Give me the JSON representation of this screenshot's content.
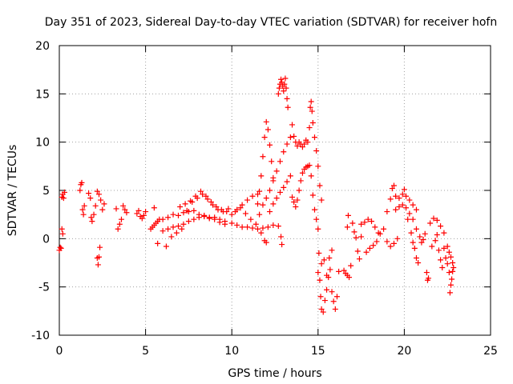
{
  "chart_data": {
    "type": "scatter",
    "title": "Day 351 of 2023, Sidereal Day-to-day VTEC variation (SDTVAR) for receiver hofn",
    "xlabel": "GPS time / hours",
    "ylabel": "SDTVAR / TECUs",
    "xlim": [
      0,
      25
    ],
    "ylim": [
      -10,
      20
    ],
    "x_ticks": [
      0,
      5,
      10,
      15,
      20,
      25
    ],
    "y_ticks": [
      -10,
      -5,
      0,
      5,
      10,
      15,
      20
    ],
    "x_tick_labels": [
      "0",
      "5",
      "10",
      "15",
      "20",
      "25"
    ],
    "y_tick_labels": [
      "-10",
      "-5",
      "0",
      "5",
      "10",
      "15",
      "20"
    ],
    "grid": true,
    "marker": "+",
    "series": [
      {
        "name": "SDTVAR",
        "color": "#ff0000",
        "points": [
          [
            0.0,
            -1.2
          ],
          [
            0.05,
            -0.9
          ],
          [
            0.1,
            -1.0
          ],
          [
            0.15,
            4.3
          ],
          [
            0.2,
            4.6
          ],
          [
            0.25,
            4.2
          ],
          [
            0.3,
            4.8
          ],
          [
            0.2,
            0.5
          ],
          [
            0.15,
            1.0
          ],
          [
            1.2,
            5.0
          ],
          [
            1.25,
            5.6
          ],
          [
            1.3,
            5.8
          ],
          [
            1.35,
            3.0
          ],
          [
            1.4,
            2.5
          ],
          [
            1.45,
            3.4
          ],
          [
            1.7,
            4.7
          ],
          [
            1.8,
            4.2
          ],
          [
            1.85,
            2.2
          ],
          [
            1.9,
            1.8
          ],
          [
            2.0,
            2.5
          ],
          [
            2.1,
            3.4
          ],
          [
            2.2,
            4.9
          ],
          [
            2.3,
            4.6
          ],
          [
            2.4,
            4.0
          ],
          [
            2.2,
            -2.0
          ],
          [
            2.25,
            -2.7
          ],
          [
            2.3,
            -1.9
          ],
          [
            2.35,
            -0.9
          ],
          [
            2.5,
            3.0
          ],
          [
            2.6,
            3.6
          ],
          [
            3.3,
            3.1
          ],
          [
            3.4,
            1.0
          ],
          [
            3.5,
            1.5
          ],
          [
            3.6,
            2.0
          ],
          [
            3.7,
            3.4
          ],
          [
            3.8,
            3.0
          ],
          [
            3.9,
            2.7
          ],
          [
            4.5,
            2.6
          ],
          [
            4.6,
            2.9
          ],
          [
            4.7,
            2.3
          ],
          [
            4.8,
            2.1
          ],
          [
            4.9,
            2.4
          ],
          [
            5.0,
            2.8
          ],
          [
            5.3,
            1.0
          ],
          [
            5.4,
            1.2
          ],
          [
            5.5,
            1.4
          ],
          [
            5.6,
            1.6
          ],
          [
            5.7,
            1.8
          ],
          [
            5.8,
            2.0
          ],
          [
            5.5,
            3.2
          ],
          [
            5.7,
            -0.5
          ],
          [
            6.0,
            2.0
          ],
          [
            6.3,
            2.2
          ],
          [
            6.6,
            2.5
          ],
          [
            6.9,
            2.4
          ],
          [
            7.2,
            2.7
          ],
          [
            7.5,
            2.8
          ],
          [
            7.8,
            2.9
          ],
          [
            8.1,
            2.5
          ],
          [
            8.4,
            2.3
          ],
          [
            8.7,
            2.1
          ],
          [
            9.0,
            2.2
          ],
          [
            9.3,
            2.0
          ],
          [
            9.6,
            1.8
          ],
          [
            6.0,
            0.8
          ],
          [
            6.3,
            1.0
          ],
          [
            6.6,
            1.2
          ],
          [
            6.9,
            1.3
          ],
          [
            7.2,
            1.5
          ],
          [
            7.5,
            1.8
          ],
          [
            7.8,
            2.0
          ],
          [
            8.1,
            2.2
          ],
          [
            8.4,
            2.4
          ],
          [
            8.7,
            2.2
          ],
          [
            9.0,
            2.0
          ],
          [
            9.3,
            1.7
          ],
          [
            9.6,
            1.5
          ],
          [
            6.2,
            -0.8
          ],
          [
            6.5,
            0.2
          ],
          [
            6.8,
            0.6
          ],
          [
            7.1,
            1.0
          ],
          [
            7.4,
            2.9
          ],
          [
            7.7,
            3.8
          ],
          [
            8.0,
            4.2
          ],
          [
            8.3,
            4.6
          ],
          [
            8.6,
            4.1
          ],
          [
            8.9,
            3.5
          ],
          [
            9.2,
            3.0
          ],
          [
            9.5,
            2.8
          ],
          [
            9.8,
            3.1
          ],
          [
            7.0,
            3.3
          ],
          [
            7.3,
            3.6
          ],
          [
            7.6,
            3.9
          ],
          [
            7.9,
            4.4
          ],
          [
            8.2,
            4.9
          ],
          [
            8.5,
            4.4
          ],
          [
            8.8,
            3.8
          ],
          [
            9.1,
            3.3
          ],
          [
            9.4,
            3.0
          ],
          [
            9.7,
            2.8
          ],
          [
            10.0,
            2.5
          ],
          [
            10.3,
            3.0
          ],
          [
            10.6,
            3.5
          ],
          [
            10.9,
            4.0
          ],
          [
            11.2,
            4.4
          ],
          [
            11.5,
            4.6
          ],
          [
            10.0,
            1.6
          ],
          [
            10.3,
            1.4
          ],
          [
            10.6,
            1.2
          ],
          [
            10.9,
            1.2
          ],
          [
            11.2,
            1.1
          ],
          [
            11.5,
            1.0
          ],
          [
            11.8,
            1.1
          ],
          [
            12.1,
            1.2
          ],
          [
            12.4,
            1.4
          ],
          [
            12.7,
            1.3
          ],
          [
            12.85,
            0.2
          ],
          [
            12.9,
            -0.6
          ],
          [
            10.2,
            2.8
          ],
          [
            10.5,
            3.2
          ],
          [
            10.8,
            2.6
          ],
          [
            11.1,
            2.0
          ],
          [
            11.4,
            1.5
          ],
          [
            11.7,
            0.6
          ],
          [
            11.9,
            -0.2
          ],
          [
            12.0,
            -0.4
          ],
          [
            11.5,
            3.6
          ],
          [
            11.6,
            4.9
          ],
          [
            11.7,
            6.5
          ],
          [
            11.8,
            8.5
          ],
          [
            11.9,
            10.5
          ],
          [
            12.0,
            12.1
          ],
          [
            12.1,
            11.3
          ],
          [
            12.2,
            9.7
          ],
          [
            12.3,
            8.0
          ],
          [
            12.4,
            6.3
          ],
          [
            11.6,
            2.5
          ],
          [
            11.8,
            3.5
          ],
          [
            12.0,
            4.2
          ],
          [
            12.2,
            5.0
          ],
          [
            12.4,
            6.0
          ],
          [
            12.6,
            7.0
          ],
          [
            12.8,
            8.0
          ],
          [
            13.0,
            9.0
          ],
          [
            13.2,
            9.8
          ],
          [
            12.2,
            2.8
          ],
          [
            12.4,
            3.6
          ],
          [
            12.6,
            4.2
          ],
          [
            12.8,
            4.8
          ],
          [
            13.0,
            5.3
          ],
          [
            13.2,
            5.9
          ],
          [
            13.4,
            6.5
          ],
          [
            12.7,
            15.0
          ],
          [
            12.75,
            15.6
          ],
          [
            12.8,
            16.0
          ],
          [
            12.85,
            16.5
          ],
          [
            12.9,
            16.2
          ],
          [
            12.95,
            15.8
          ],
          [
            13.0,
            15.3
          ],
          [
            13.05,
            16.0
          ],
          [
            13.1,
            16.6
          ],
          [
            13.15,
            15.6
          ],
          [
            13.2,
            14.5
          ],
          [
            13.25,
            13.6
          ],
          [
            13.4,
            10.5
          ],
          [
            13.5,
            11.8
          ],
          [
            13.6,
            10.6
          ],
          [
            13.7,
            10.0
          ],
          [
            13.8,
            9.6
          ],
          [
            13.9,
            10.0
          ],
          [
            14.0,
            9.8
          ],
          [
            14.1,
            9.5
          ],
          [
            14.2,
            9.8
          ],
          [
            14.3,
            10.2
          ],
          [
            14.4,
            10.0
          ],
          [
            14.5,
            11.5
          ],
          [
            14.55,
            13.6
          ],
          [
            14.6,
            14.2
          ],
          [
            14.65,
            13.2
          ],
          [
            14.7,
            12.0
          ],
          [
            14.8,
            10.5
          ],
          [
            14.9,
            9.1
          ],
          [
            15.0,
            7.5
          ],
          [
            15.1,
            5.5
          ],
          [
            15.2,
            4.0
          ],
          [
            13.5,
            4.3
          ],
          [
            13.6,
            3.8
          ],
          [
            13.7,
            3.3
          ],
          [
            13.8,
            4.0
          ],
          [
            13.9,
            5.0
          ],
          [
            14.0,
            6.0
          ],
          [
            14.1,
            6.8
          ],
          [
            14.2,
            7.2
          ],
          [
            14.3,
            7.4
          ],
          [
            14.4,
            7.5
          ],
          [
            14.5,
            7.6
          ],
          [
            14.6,
            6.5
          ],
          [
            14.7,
            4.5
          ],
          [
            14.8,
            3.0
          ],
          [
            14.9,
            2.0
          ],
          [
            15.0,
            1.0
          ],
          [
            15.0,
            -3.5
          ],
          [
            15.1,
            -4.3
          ],
          [
            15.15,
            -6.0
          ],
          [
            15.2,
            -7.3
          ],
          [
            15.3,
            -7.6
          ],
          [
            15.4,
            -6.4
          ],
          [
            15.5,
            -5.3
          ],
          [
            15.6,
            -4.0
          ],
          [
            15.7,
            -3.2
          ],
          [
            15.8,
            -5.5
          ],
          [
            15.9,
            -6.5
          ],
          [
            16.0,
            -7.3
          ],
          [
            16.1,
            -6.0
          ],
          [
            16.2,
            -3.4
          ],
          [
            15.05,
            -1.5
          ],
          [
            15.2,
            -2.6
          ],
          [
            15.35,
            -2.2
          ],
          [
            15.5,
            -3.8
          ],
          [
            15.65,
            -2.0
          ],
          [
            15.8,
            -1.2
          ],
          [
            16.5,
            -3.3
          ],
          [
            16.6,
            -3.6
          ],
          [
            16.7,
            -3.8
          ],
          [
            16.8,
            -4.0
          ],
          [
            16.9,
            -2.8
          ],
          [
            16.7,
            1.2
          ],
          [
            16.75,
            2.4
          ],
          [
            17.0,
            1.6
          ],
          [
            17.1,
            0.7
          ],
          [
            17.2,
            0.1
          ],
          [
            17.3,
            -1.3
          ],
          [
            17.4,
            -2.1
          ],
          [
            17.5,
            0.2
          ],
          [
            17.5,
            1.5
          ],
          [
            17.7,
            1.7
          ],
          [
            17.9,
            2.0
          ],
          [
            18.1,
            1.8
          ],
          [
            18.3,
            1.2
          ],
          [
            18.5,
            0.6
          ],
          [
            17.8,
            -1.4
          ],
          [
            18.0,
            -1.0
          ],
          [
            18.2,
            -0.7
          ],
          [
            18.4,
            -0.3
          ],
          [
            18.6,
            0.5
          ],
          [
            18.8,
            1.0
          ],
          [
            19.0,
            -0.3
          ],
          [
            19.2,
            -0.8
          ],
          [
            19.4,
            -0.5
          ],
          [
            19.6,
            0.0
          ],
          [
            19.0,
            2.8
          ],
          [
            19.2,
            4.1
          ],
          [
            19.3,
            5.2
          ],
          [
            19.4,
            5.5
          ],
          [
            19.5,
            4.4
          ],
          [
            19.7,
            4.2
          ],
          [
            19.9,
            4.6
          ],
          [
            20.0,
            5.1
          ],
          [
            20.1,
            4.4
          ],
          [
            20.3,
            4.0
          ],
          [
            20.5,
            3.5
          ],
          [
            20.7,
            3.0
          ],
          [
            19.5,
            3.0
          ],
          [
            19.7,
            3.3
          ],
          [
            19.9,
            3.5
          ],
          [
            20.1,
            3.2
          ],
          [
            20.3,
            2.6
          ],
          [
            20.5,
            2.0
          ],
          [
            20.7,
            1.0
          ],
          [
            20.9,
            0.2
          ],
          [
            20.2,
            2.0
          ],
          [
            20.4,
            0.6
          ],
          [
            20.5,
            -0.4
          ],
          [
            20.6,
            -1.0
          ],
          [
            20.7,
            -2.0
          ],
          [
            20.8,
            -2.5
          ],
          [
            21.0,
            -0.4
          ],
          [
            21.1,
            -0.1
          ],
          [
            21.2,
            0.5
          ],
          [
            21.3,
            -3.5
          ],
          [
            21.35,
            -4.3
          ],
          [
            21.4,
            -4.1
          ],
          [
            21.5,
            1.6
          ],
          [
            21.7,
            2.1
          ],
          [
            21.9,
            1.9
          ],
          [
            22.1,
            1.3
          ],
          [
            22.3,
            0.6
          ],
          [
            21.6,
            -0.8
          ],
          [
            21.8,
            -0.2
          ],
          [
            21.9,
            0.4
          ],
          [
            22.0,
            -1.2
          ],
          [
            22.1,
            -2.2
          ],
          [
            22.2,
            -3.0
          ],
          [
            22.3,
            -1.0
          ],
          [
            22.4,
            -2.0
          ],
          [
            22.5,
            -2.6
          ],
          [
            22.6,
            -3.5
          ],
          [
            22.65,
            -5.6
          ],
          [
            22.7,
            -4.8
          ],
          [
            22.75,
            -4.2
          ],
          [
            22.8,
            -3.4
          ],
          [
            22.5,
            -0.8
          ],
          [
            22.6,
            -1.4
          ],
          [
            22.7,
            -1.9
          ],
          [
            22.8,
            -2.5
          ],
          [
            22.85,
            -3.0
          ]
        ]
      }
    ]
  }
}
